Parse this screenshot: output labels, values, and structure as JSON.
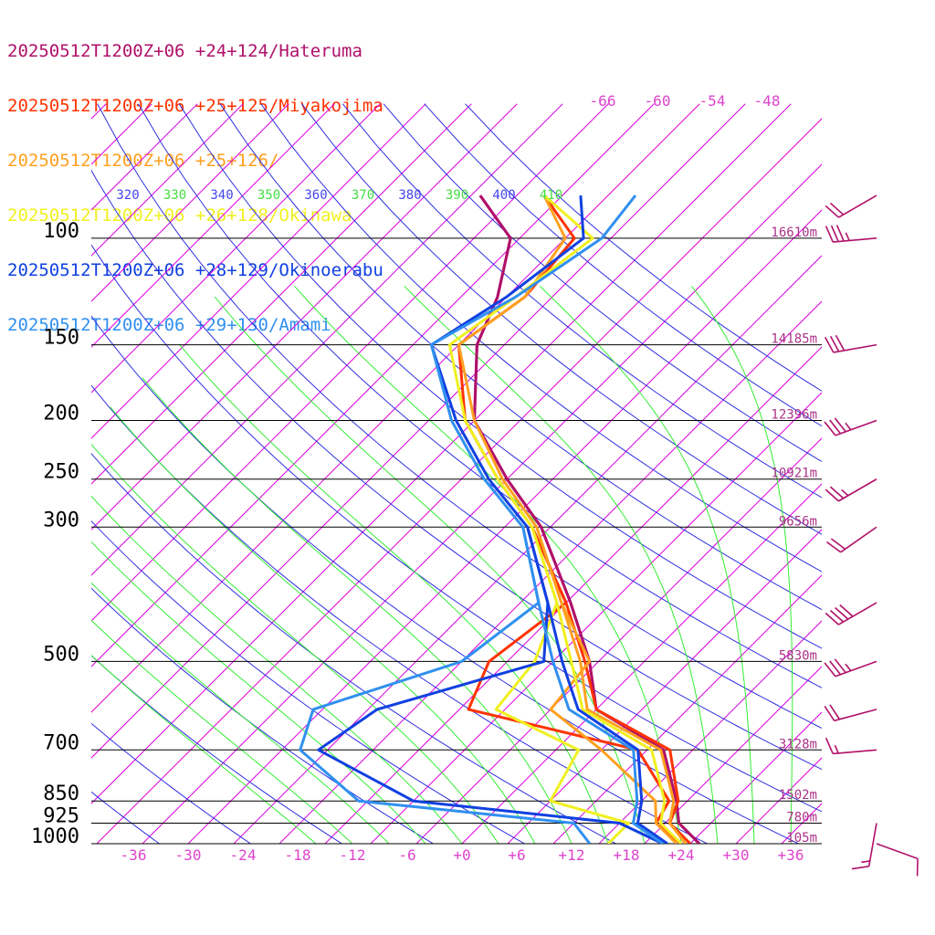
{
  "chart_data": {
    "type": "line",
    "title": "",
    "xlabel": "",
    "ylabel": "",
    "x_unit": "temperature (°C), skewed",
    "y_unit": "pressure (hPa)",
    "xlim": [
      -39,
      40
    ],
    "ylim_hpa": [
      1000,
      85
    ],
    "series": [
      {
        "name": "20250512T1200Z+06 +24+124/Hateruma",
        "color": "#b0106a",
        "temperature": [
          [
            1000,
            26
          ],
          [
            925,
            21.5
          ],
          [
            850,
            18.8
          ],
          [
            700,
            11.8
          ],
          [
            600,
            0
          ],
          [
            500,
            -6
          ],
          [
            400,
            -14.5
          ],
          [
            300,
            -26
          ],
          [
            250,
            -35
          ],
          [
            200,
            -45
          ],
          [
            150,
            -53
          ],
          [
            125,
            -56
          ],
          [
            100,
            -61
          ],
          [
            85,
            -69
          ]
        ],
        "dewpoint": [
          [
            1000,
            26
          ],
          [
            925,
            21.5
          ],
          [
            850,
            18.8
          ],
          [
            700,
            11.8
          ],
          [
            600,
            0
          ],
          [
            500,
            -6
          ],
          [
            400,
            -14.5
          ],
          [
            300,
            -26
          ],
          [
            250,
            -35
          ],
          [
            200,
            -45
          ],
          [
            150,
            -53
          ],
          [
            125,
            -56
          ],
          [
            100,
            -61
          ],
          [
            85,
            -69
          ]
        ]
      },
      {
        "name": "20250512T1200Z+06 +25+125/Miyakojima",
        "color": "#ff3300",
        "temperature": [
          [
            1000,
            25
          ],
          [
            925,
            20.5
          ],
          [
            850,
            19
          ],
          [
            700,
            12.5
          ],
          [
            600,
            0
          ],
          [
            500,
            -6.5
          ],
          [
            400,
            -15
          ],
          [
            300,
            -27
          ],
          [
            250,
            -36
          ],
          [
            200,
            -46
          ],
          [
            150,
            -55
          ],
          [
            125,
            -53
          ],
          [
            100,
            -54
          ],
          [
            85,
            -62
          ]
        ],
        "dewpoint": [
          [
            1000,
            24
          ],
          [
            925,
            19
          ],
          [
            850,
            18
          ],
          [
            700,
            9
          ],
          [
            600,
            -14
          ],
          [
            500,
            -17
          ],
          [
            400,
            -15
          ],
          [
            300,
            -27
          ]
        ]
      },
      {
        "name": "20250512T1200Z+06 +25+126/",
        "color": "#ffa020",
        "temperature": [
          [
            1000,
            24.5
          ],
          [
            925,
            20.5
          ],
          [
            850,
            18.5
          ],
          [
            700,
            11.5
          ],
          [
            600,
            -1
          ],
          [
            500,
            -7
          ],
          [
            400,
            -15.5
          ],
          [
            300,
            -26.5
          ],
          [
            250,
            -35.5
          ],
          [
            200,
            -45
          ],
          [
            150,
            -55
          ],
          [
            125,
            -53
          ],
          [
            100,
            -55
          ],
          [
            85,
            -62
          ]
        ],
        "dewpoint": [
          [
            1000,
            23.5
          ],
          [
            925,
            19
          ],
          [
            850,
            16.5
          ],
          [
            700,
            5
          ],
          [
            600,
            -5
          ],
          [
            500,
            -6
          ],
          [
            400,
            -15.5
          ],
          [
            300,
            -26.5
          ]
        ]
      },
      {
        "name": "20250512T1200Z+06 +26+128/Okinawa",
        "color": "#f0f020",
        "temperature": [
          [
            1000,
            24
          ],
          [
            925,
            19.5
          ],
          [
            850,
            17.5
          ],
          [
            700,
            10.5
          ],
          [
            600,
            -1.5
          ],
          [
            500,
            -8
          ],
          [
            400,
            -16
          ],
          [
            300,
            -27
          ],
          [
            250,
            -36
          ],
          [
            200,
            -46
          ],
          [
            150,
            -56
          ],
          [
            125,
            -54
          ],
          [
            100,
            -52
          ],
          [
            85,
            -62
          ]
        ],
        "dewpoint": [
          [
            1000,
            16
          ],
          [
            925,
            16
          ],
          [
            850,
            5
          ],
          [
            700,
            2.5
          ],
          [
            600,
            -11
          ],
          [
            500,
            -12
          ],
          [
            400,
            -16
          ],
          [
            300,
            -27
          ]
        ]
      },
      {
        "name": "20250512T1200Z+06 +28+129/Okinoerabu",
        "color": "#1040e0",
        "temperature": [
          [
            1000,
            22.5
          ],
          [
            925,
            17
          ],
          [
            850,
            15
          ],
          [
            700,
            9
          ],
          [
            600,
            -2
          ],
          [
            500,
            -9
          ],
          [
            400,
            -17
          ],
          [
            300,
            -27.5
          ],
          [
            250,
            -37
          ],
          [
            200,
            -47
          ],
          [
            150,
            -58
          ],
          [
            125,
            -55
          ],
          [
            100,
            -53
          ],
          [
            85,
            -58
          ]
        ],
        "dewpoint": [
          [
            1000,
            22
          ],
          [
            925,
            15
          ],
          [
            850,
            -10
          ],
          [
            700,
            -26
          ],
          [
            600,
            -24
          ],
          [
            500,
            -11
          ],
          [
            400,
            -17
          ],
          [
            300,
            -27.5
          ]
        ]
      },
      {
        "name": "20250512T1200Z+06 +29+130/Amami",
        "color": "#3090f0",
        "temperature": [
          [
            1000,
            22
          ],
          [
            925,
            16.5
          ],
          [
            850,
            14.5
          ],
          [
            700,
            8.5
          ],
          [
            600,
            -3
          ],
          [
            500,
            -10
          ],
          [
            400,
            -18
          ],
          [
            300,
            -28
          ],
          [
            250,
            -37.5
          ],
          [
            200,
            -47.5
          ],
          [
            150,
            -58
          ],
          [
            125,
            -54
          ],
          [
            100,
            -51
          ],
          [
            85,
            -52
          ]
        ],
        "dewpoint": [
          [
            1000,
            14
          ],
          [
            925,
            10
          ],
          [
            850,
            -16
          ],
          [
            700,
            -28
          ],
          [
            600,
            -31
          ],
          [
            500,
            -20
          ],
          [
            400,
            -18
          ],
          [
            300,
            -28
          ]
        ]
      }
    ],
    "pressure_levels": [
      {
        "p": 100,
        "label": "100",
        "height": "16610m"
      },
      {
        "p": 150,
        "label": "150",
        "height": "14185m"
      },
      {
        "p": 200,
        "label": "200",
        "height": "12396m"
      },
      {
        "p": 250,
        "label": "250",
        "height": "10921m"
      },
      {
        "p": 300,
        "label": "300",
        "height": "9656m"
      },
      {
        "p": 500,
        "label": "500",
        "height": "5830m"
      },
      {
        "p": 700,
        "label": "700",
        "height": "3128m"
      },
      {
        "p": 850,
        "label": "850",
        "height": "1502m"
      },
      {
        "p": 925,
        "label": "925",
        "height": "780m"
      },
      {
        "p": 1000,
        "label": "1000",
        "height": "105m"
      }
    ],
    "x_ticks": [
      "-36",
      "-30",
      "-24",
      "-18",
      "-12",
      "-6",
      "+0",
      "+6",
      "+12",
      "+18",
      "+24",
      "+30",
      "+36"
    ],
    "isotherm_labels_top": [
      "-66",
      "-60",
      "-54",
      "-48"
    ],
    "theta_labels": [
      {
        "label": "320",
        "color": "#4444ee"
      },
      {
        "label": "330",
        "color": "#44dd44"
      },
      {
        "label": "340",
        "color": "#4444ee"
      },
      {
        "label": "350",
        "color": "#44dd44"
      },
      {
        "label": "360",
        "color": "#4444ee"
      },
      {
        "label": "370",
        "color": "#44dd44"
      },
      {
        "label": "380",
        "color": "#4444ee"
      },
      {
        "label": "390",
        "color": "#44dd44"
      },
      {
        "label": "400",
        "color": "#4444ee"
      },
      {
        "label": "410",
        "color": "#44dd44"
      }
    ],
    "wind_barbs": [
      {
        "p": 85,
        "dir": 240,
        "kt": 20
      },
      {
        "p": 100,
        "dir": 265,
        "kt": 35
      },
      {
        "p": 150,
        "dir": 260,
        "kt": 30
      },
      {
        "p": 200,
        "dir": 250,
        "kt": 35
      },
      {
        "p": 250,
        "dir": 240,
        "kt": 25
      },
      {
        "p": 300,
        "dir": 235,
        "kt": 20
      },
      {
        "p": 400,
        "dir": 240,
        "kt": 40
      },
      {
        "p": 500,
        "dir": 250,
        "kt": 35
      },
      {
        "p": 600,
        "dir": 255,
        "kt": 20
      },
      {
        "p": 700,
        "dir": 265,
        "kt": 15
      },
      {
        "p": 925,
        "dir": 190,
        "kt": 15
      },
      {
        "p": 1000,
        "dir": 110,
        "kt": 10
      }
    ],
    "grid": true,
    "legend_position": "top-left"
  },
  "colors": {
    "isotherm": "#dd00dd",
    "dry_adiabat": "#3030e0",
    "moist_adiabat": "#33ee33",
    "tick_label": "#dd44cc",
    "height_label": "#aa3388",
    "barb": "#b0106a",
    "isobar": "#000000"
  }
}
